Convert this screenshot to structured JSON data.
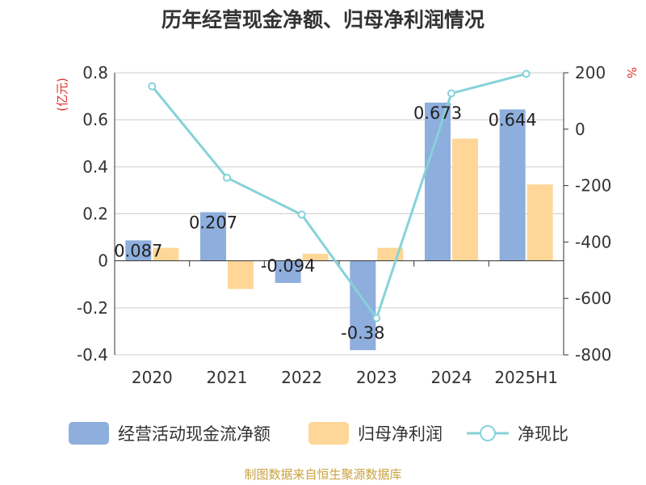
{
  "title": "历年经营现金净额、归母净利润情况",
  "source": "制图数据来自恒生聚源数据库",
  "colors": {
    "cash": "#8eaedd",
    "profit": "#fed798",
    "ratio": "#86d2d8"
  },
  "chart_data": {
    "type": "bar",
    "categories": [
      "2020",
      "2021",
      "2022",
      "2023",
      "2024",
      "2025H1"
    ],
    "left_axis": {
      "unit": "(亿元)",
      "ylim": [
        -0.4,
        0.8
      ],
      "ticks": [
        "-0.4",
        "-0.2",
        "0",
        "0.2",
        "0.4",
        "0.6",
        "0.8"
      ]
    },
    "right_axis": {
      "unit": "%",
      "ylim": [
        -800,
        200
      ],
      "ticks": [
        "-800",
        "-600",
        "-400",
        "-200",
        "0",
        "200"
      ]
    },
    "series": [
      {
        "name": "经营活动现金流净额",
        "type": "bar",
        "axis": "left",
        "values": [
          0.087,
          0.207,
          -0.094,
          -0.38,
          0.673,
          0.644
        ],
        "labels": [
          "0.087",
          "0.207",
          "-0.094",
          "-0.38",
          "0.673",
          "0.644"
        ]
      },
      {
        "name": "归母净利润",
        "type": "bar",
        "axis": "left",
        "values": [
          0.055,
          -0.12,
          0.03,
          0.055,
          0.52,
          0.325
        ]
      },
      {
        "name": "净现比",
        "type": "line",
        "axis": "right",
        "values": [
          152,
          -172,
          -303,
          -670,
          127,
          196
        ]
      }
    ],
    "grid": true,
    "legend_position": "bottom"
  }
}
